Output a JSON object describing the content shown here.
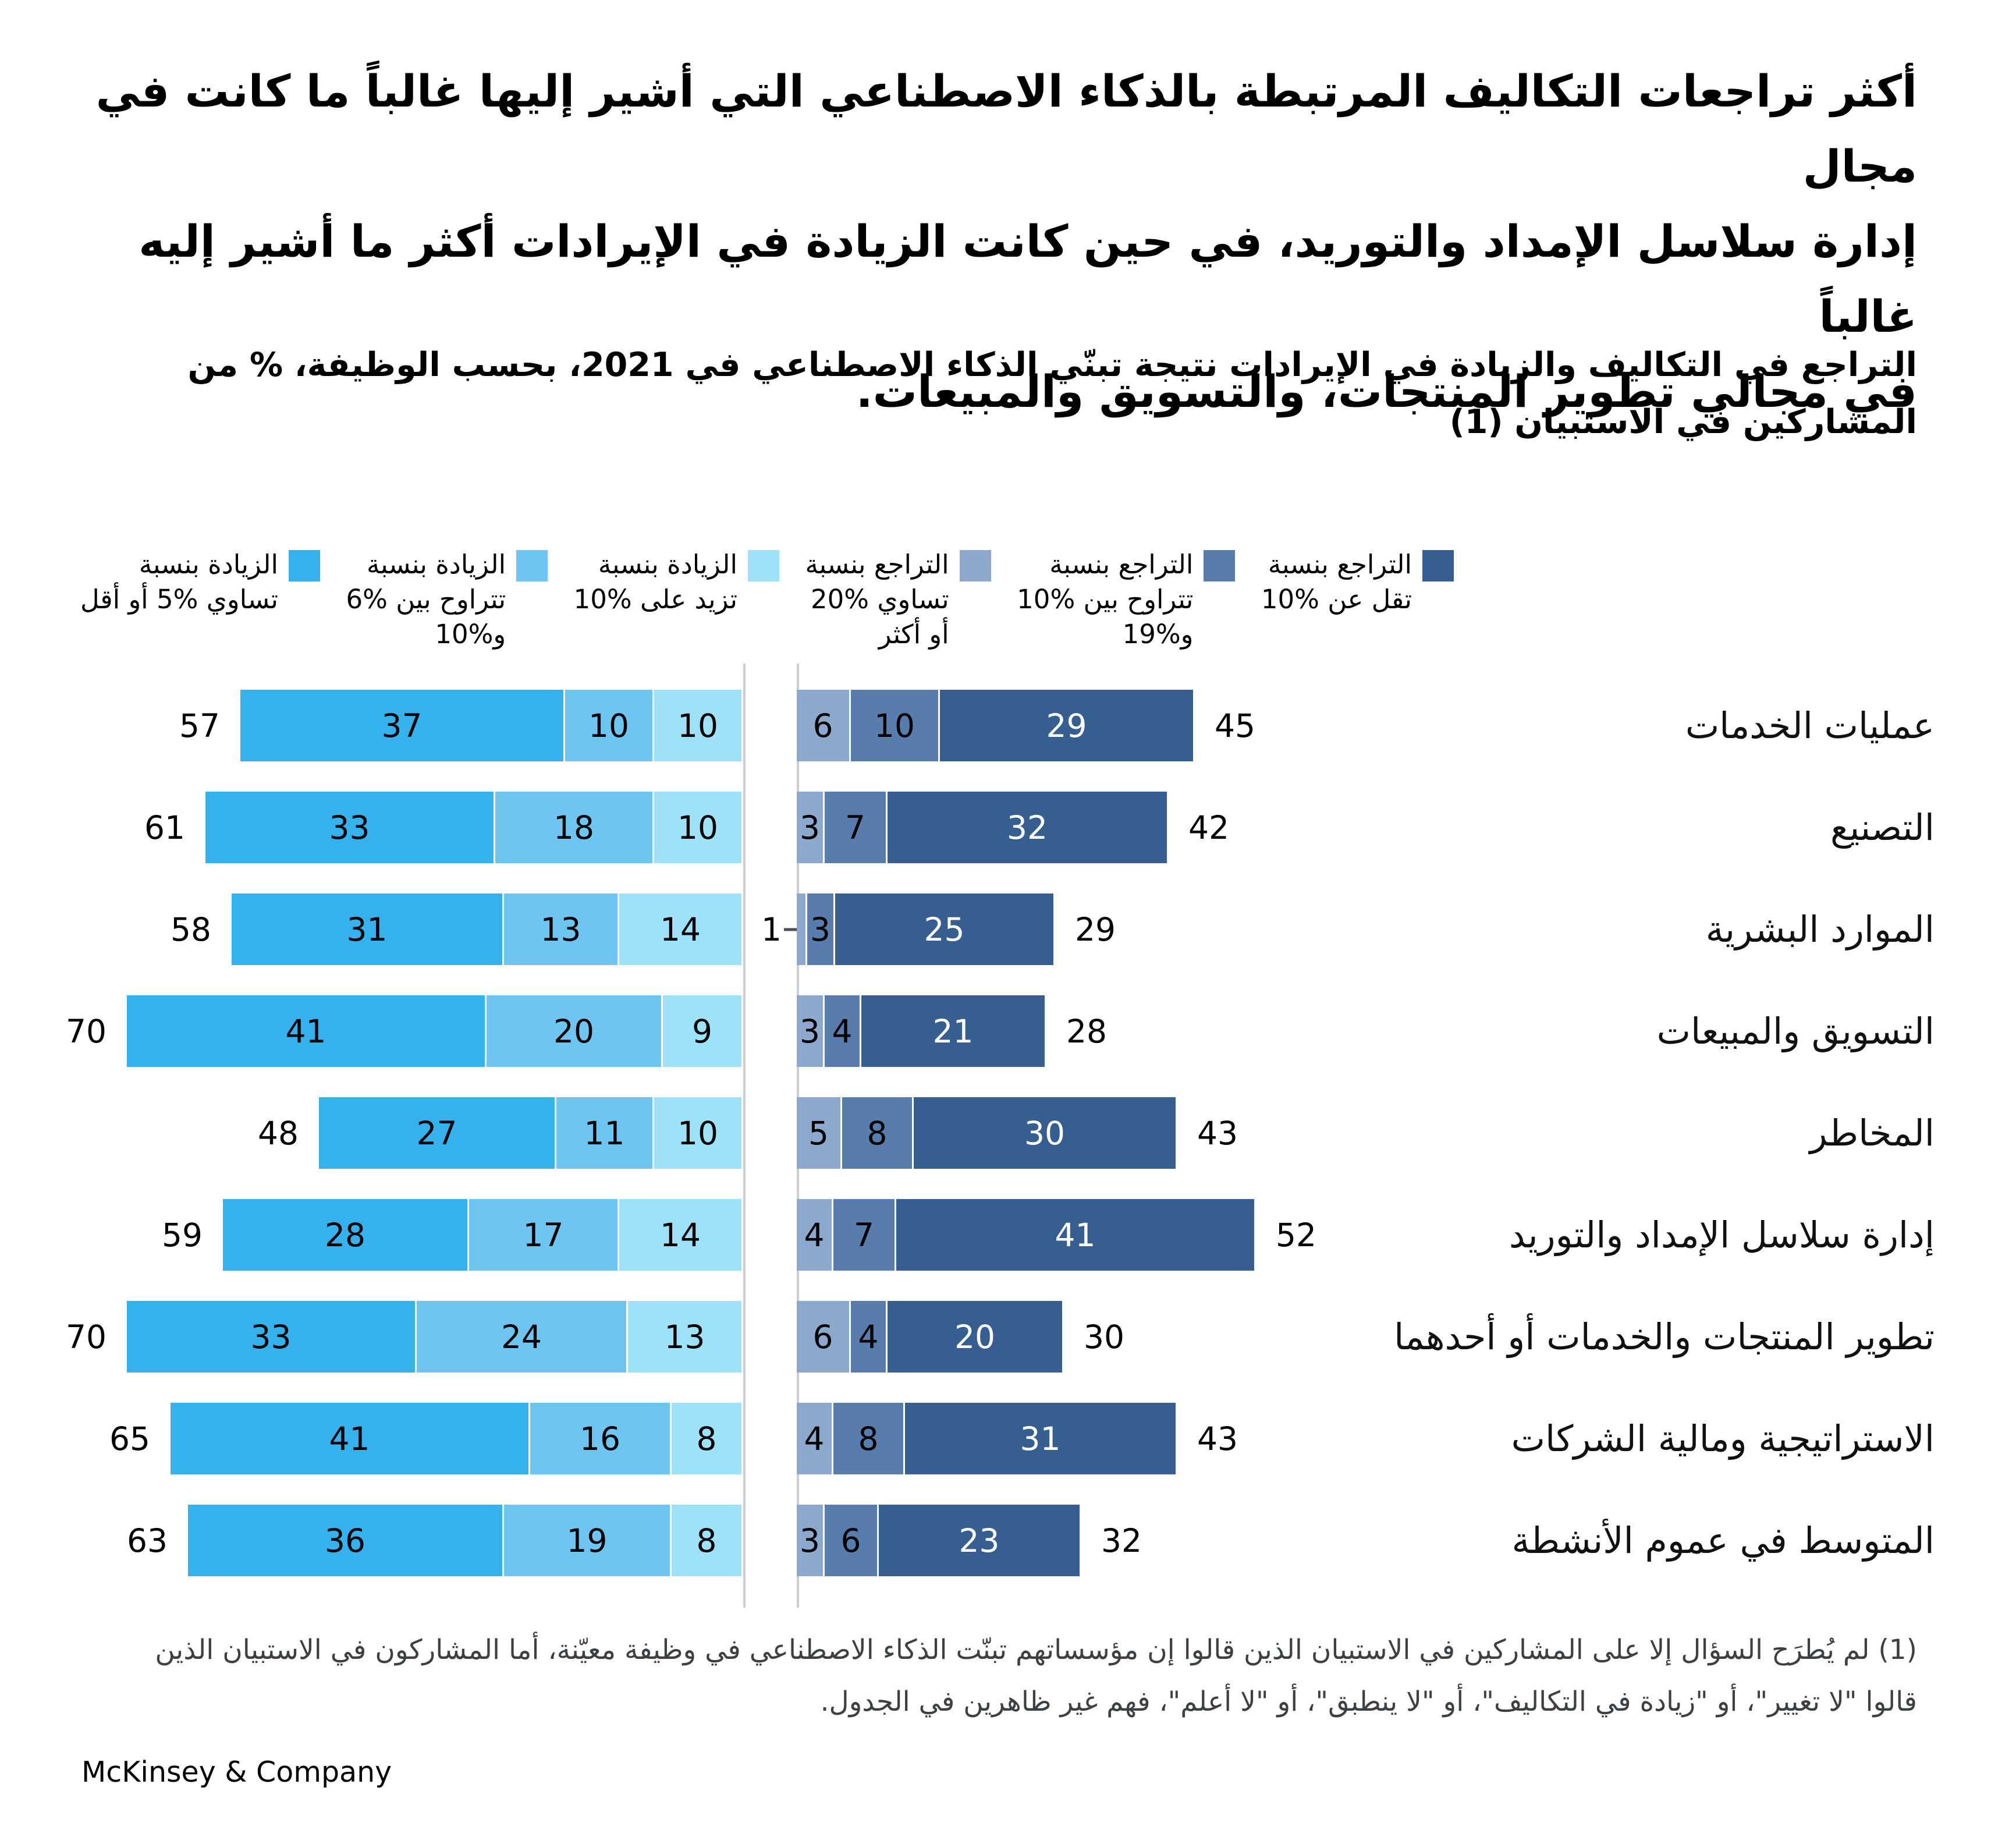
{
  "title_lines": [
    "أكثر تراجعات التكاليف المرتبطة بالذكاء الاصطناعي التي أشير إليها غالباً ما كانت في مجال",
    "إدارة سلاسل الإمداد والتوريد، في حين كانت الزيادة في الإيرادات أكثر ما أشير إليه غالباً",
    "في مجالي تطوير المنتجات، والتسويق والمبيعات."
  ],
  "subtitle_lines": [
    "التراجع في التكاليف والزيادة في الإيرادات نتيجة تبنّي الذكاء الاصطناعي في 2021، بحسب الوظيفة، % من",
    "المشاركين في الاستبيان (1)"
  ],
  "legend": {
    "items": [
      {
        "name": "decrease-lt-10",
        "color": "#375E90",
        "lines": [
          "التراجع بنسبة",
          "تقل عن %10"
        ]
      },
      {
        "name": "decrease-10-19",
        "color": "#587DAC",
        "lines": [
          "التراجع بنسبة",
          "تتراوح بين %10",
          "و%19"
        ]
      },
      {
        "name": "decrease-ge-20",
        "color": "#8CA9CD",
        "lines": [
          "التراجع بنسبة",
          "تساوي %20",
          "أو أكثر"
        ]
      },
      {
        "name": "increase-gt-10",
        "color": "#9EE2FA",
        "lines": [
          "الزيادة بنسبة",
          "تزيد على %10"
        ]
      },
      {
        "name": "increase-6-10",
        "color": "#6EC5F1",
        "lines": [
          "الزيادة بنسبة",
          "تتراوح بين %6",
          "و%10"
        ]
      },
      {
        "name": "increase-le-5",
        "color": "#35B1EE",
        "lines": [
          "الزيادة بنسبة",
          "تساوي %5 أو أقل"
        ]
      }
    ]
  },
  "chart_data": {
    "type": "bar",
    "subtype": "diverging-stacked-horizontal",
    "unit": "% من المشاركين في الاستبيان",
    "increase_categories": [
      "الزيادة بنسبة تساوي %5 أو أقل",
      "الزيادة بنسبة تتراوح بين %6 و%10",
      "الزيادة بنسبة تزيد على %10"
    ],
    "increase_colors": [
      "#35B1EE",
      "#6EC5F1",
      "#9EE2FA"
    ],
    "increase_text_colors": [
      "#000000",
      "#000000",
      "#000000"
    ],
    "decrease_categories": [
      "التراجع بنسبة تساوي %20 أو أكثر",
      "التراجع بنسبة تتراوح بين %10 و%19",
      "التراجع بنسبة تقل عن %10"
    ],
    "decrease_colors": [
      "#8CA9CD",
      "#587DAC",
      "#375E90"
    ],
    "decrease_text_colors": [
      "#000000",
      "#000000",
      "#ffffff"
    ],
    "rows": [
      {
        "label": "عمليات الخدمات",
        "increase": [
          37,
          10,
          10
        ],
        "increase_total": 57,
        "decrease": [
          6,
          10,
          29
        ],
        "decrease_total": 45
      },
      {
        "label": "التصنيع",
        "increase": [
          33,
          18,
          10
        ],
        "increase_total": 61,
        "decrease": [
          3,
          7,
          32
        ],
        "decrease_total": 42
      },
      {
        "label": "الموارد البشرية",
        "increase": [
          31,
          13,
          14
        ],
        "increase_total": 58,
        "decrease": [
          1,
          3,
          25
        ],
        "decrease_total": 29
      },
      {
        "label": "التسويق والمبيعات",
        "increase": [
          41,
          20,
          9
        ],
        "increase_total": 70,
        "decrease": [
          3,
          4,
          21
        ],
        "decrease_total": 28
      },
      {
        "label": "المخاطر",
        "increase": [
          27,
          11,
          10
        ],
        "increase_total": 48,
        "decrease": [
          5,
          8,
          30
        ],
        "decrease_total": 43
      },
      {
        "label": "إدارة سلاسل الإمداد والتوريد",
        "increase": [
          28,
          17,
          14
        ],
        "increase_total": 59,
        "decrease": [
          4,
          7,
          41
        ],
        "decrease_total": 52
      },
      {
        "label": "تطوير المنتجات والخدمات أو أحدهما",
        "increase": [
          33,
          24,
          13
        ],
        "increase_total": 70,
        "decrease": [
          6,
          4,
          20
        ],
        "decrease_total": 30
      },
      {
        "label": "الاستراتيجية ومالية الشركات",
        "increase": [
          41,
          16,
          8
        ],
        "increase_total": 65,
        "decrease": [
          4,
          8,
          31
        ],
        "decrease_total": 43
      },
      {
        "label": "المتوسط في عموم الأنشطة",
        "increase": [
          36,
          19,
          8
        ],
        "increase_total": 63,
        "decrease": [
          3,
          6,
          23
        ],
        "decrease_total": 32
      }
    ]
  },
  "footnote_lines": [
    "(1) لم يُطرَح السؤال إلا على المشاركين في الاستبيان الذين قالوا إن مؤسساتهم تبنّت الذكاء الاصطناعي في وظيفة معيّنة، أما المشاركون في الاستبيان الذين",
    "قالوا \"لا تغيير\"، أو \"زيادة في التكاليف\"، أو \"لا ينطبق\"، أو \"لا أعلم\"، فهم غير ظاهرين في الجدول."
  ],
  "logo": "McKinsey & Company"
}
